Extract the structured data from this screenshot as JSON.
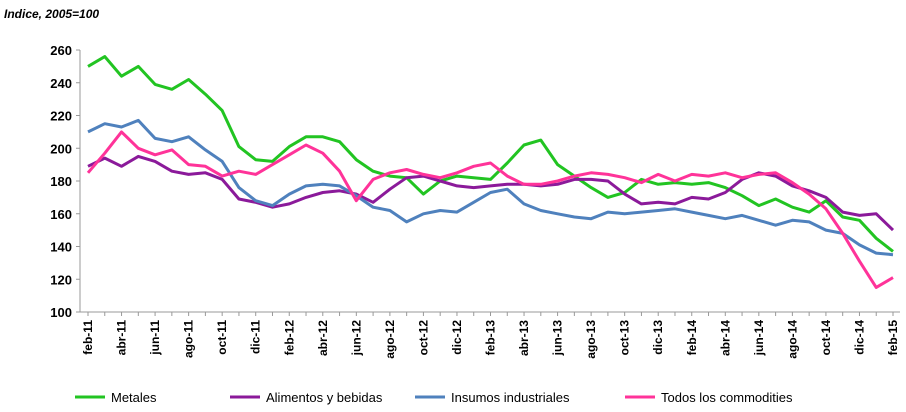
{
  "chart_data": {
    "type": "line",
    "y_axis_label": "Indice, 2005=100",
    "categories": [
      "feb-11",
      null,
      "abr-11",
      null,
      "jun-11",
      null,
      "ago-11",
      null,
      "oct-11",
      null,
      "dic-11",
      null,
      "feb-12",
      null,
      "abr-12",
      null,
      "jun-12",
      null,
      "ago-12",
      null,
      "oct-12",
      null,
      "dic-12",
      null,
      "feb-13",
      null,
      "abr-13",
      null,
      "jun-13",
      null,
      "ago-13",
      null,
      "oct-13",
      null,
      "dic-13",
      null,
      "feb-14",
      null,
      "abr-14",
      null,
      "jun-14",
      null,
      "ago-14",
      null,
      "oct-14",
      null,
      "dic-14",
      null,
      "feb-15"
    ],
    "series": [
      {
        "name": "Metales",
        "color": "#22c422",
        "values": [
          250,
          256,
          244,
          250,
          239,
          236,
          242,
          233,
          223,
          201,
          193,
          192,
          201,
          207,
          207,
          204,
          193,
          186,
          183,
          182,
          172,
          180,
          183,
          182,
          181,
          191,
          202,
          205,
          190,
          183,
          176,
          170,
          173,
          181,
          178,
          179,
          178,
          179,
          176,
          171,
          165,
          169,
          164,
          161,
          168,
          158,
          156,
          145,
          137
        ]
      },
      {
        "name": "Alimentos y bebidas",
        "color": "#8b1a9a",
        "values": [
          189,
          194,
          189,
          195,
          192,
          186,
          184,
          185,
          181,
          169,
          167,
          164,
          166,
          170,
          173,
          174,
          172,
          167,
          175,
          182,
          183,
          180,
          177,
          176,
          177,
          178,
          178,
          177,
          178,
          181,
          181,
          180,
          172,
          166,
          167,
          166,
          170,
          169,
          173,
          181,
          185,
          183,
          177,
          174,
          170,
          161,
          159,
          160,
          150
        ]
      },
      {
        "name": "Insumos industriales",
        "color": "#4f81bd",
        "values": [
          210,
          215,
          213,
          217,
          206,
          204,
          207,
          199,
          192,
          176,
          168,
          165,
          172,
          177,
          178,
          177,
          171,
          164,
          162,
          155,
          160,
          162,
          161,
          167,
          173,
          175,
          166,
          162,
          160,
          158,
          157,
          161,
          160,
          161,
          162,
          163,
          161,
          159,
          157,
          159,
          156,
          153,
          156,
          155,
          150,
          148,
          141,
          136,
          135
        ]
      },
      {
        "name": "Todos los commodities",
        "color": "#ff3399",
        "values": [
          185,
          197,
          210,
          200,
          196,
          199,
          190,
          189,
          183,
          186,
          184,
          190,
          196,
          202,
          197,
          186,
          168,
          181,
          185,
          187,
          184,
          182,
          185,
          189,
          191,
          183,
          178,
          178,
          180,
          183,
          185,
          184,
          182,
          179,
          184,
          180,
          184,
          183,
          185,
          182,
          184,
          185,
          179,
          172,
          163,
          148,
          131,
          115,
          121
        ]
      }
    ],
    "ylim": [
      100,
      260
    ],
    "yticks": [
      100,
      120,
      140,
      160,
      180,
      200,
      220,
      240,
      260
    ],
    "grid": false
  }
}
